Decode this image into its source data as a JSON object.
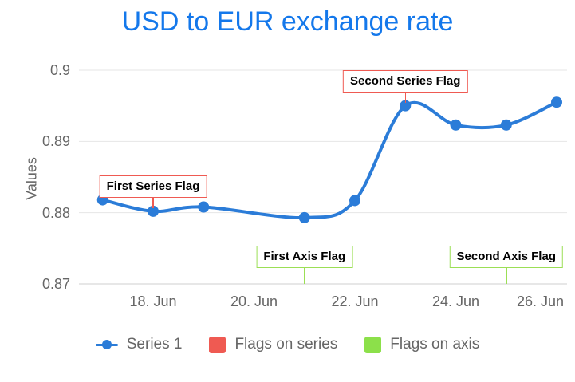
{
  "title": "USD to EUR exchange rate",
  "colors": {
    "title": "#1478eb",
    "series": "#2b7cd8",
    "flag_red": "#ef5a52",
    "flag_green": "#8ce04a",
    "flag_green_border": "#9bdf55",
    "grid": "#e6e6e6",
    "axis_line": "#cfcfcf",
    "tick_text": "#666666",
    "flag_text": "#000000"
  },
  "chart_data": {
    "type": "line",
    "title": "USD to EUR exchange rate",
    "ylabel": "Values",
    "xlabel": "",
    "grid": true,
    "legend_position": "bottom",
    "ylim": [
      0.87,
      0.9
    ],
    "x_unit": "day of June",
    "series": [
      {
        "name": "Series 1",
        "points": [
          {
            "day": 17,
            "value": 0.8818
          },
          {
            "day": 18,
            "value": 0.8802
          },
          {
            "day": 19,
            "value": 0.8808
          },
          {
            "day": 21,
            "value": 0.8793
          },
          {
            "day": 22,
            "value": 0.8817
          },
          {
            "day": 23,
            "value": 0.895
          },
          {
            "day": 24,
            "value": 0.8923
          },
          {
            "day": 25,
            "value": 0.8923
          },
          {
            "day": 26,
            "value": 0.8955
          }
        ]
      }
    ],
    "yticks": [
      {
        "value": 0.9,
        "label": "0.9"
      },
      {
        "value": 0.89,
        "label": "0.89"
      },
      {
        "value": 0.88,
        "label": "0.88"
      },
      {
        "value": 0.87,
        "label": "0.87"
      }
    ],
    "xticks": [
      {
        "day": 18,
        "label": "18. Jun"
      },
      {
        "day": 20,
        "label": "20. Jun"
      },
      {
        "day": 22,
        "label": "22. Jun"
      },
      {
        "day": 24,
        "label": "24. Jun"
      },
      {
        "day": 26,
        "label": "26. Jun"
      }
    ],
    "flags_on_series": [
      {
        "label": "First Series Flag",
        "day": 18,
        "value": 0.8802
      },
      {
        "label": "Second Series Flag",
        "day": 23,
        "value": 0.895
      }
    ],
    "flags_on_axis": [
      {
        "label": "First Axis Flag",
        "day": 21
      },
      {
        "label": "Second Axis Flag",
        "day": 25
      }
    ]
  },
  "legend": {
    "items": [
      {
        "label": "Series 1",
        "type": "line-marker"
      },
      {
        "label": "Flags on series",
        "type": "square-red"
      },
      {
        "label": "Flags on axis",
        "type": "square-green"
      }
    ]
  }
}
